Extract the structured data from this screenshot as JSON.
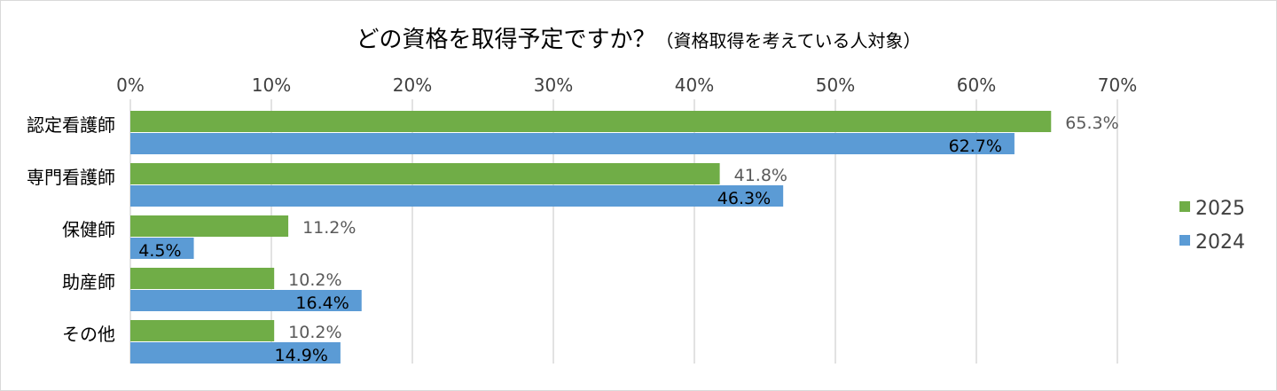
{
  "chart_data": {
    "type": "bar",
    "orientation": "horizontal",
    "title": "どの資格を取得予定ですか？",
    "subtitle": "（資格取得を考えている人対象）",
    "categories": [
      "認定看護師",
      "専門看護師",
      "保健師",
      "助産師",
      "その他"
    ],
    "series": [
      {
        "name": "2025",
        "color": "#70ad47",
        "values": [
          65.3,
          41.8,
          11.2,
          10.2,
          10.2
        ],
        "labels": [
          "65.3%",
          "41.8%",
          "11.2%",
          "10.2%",
          "10.2%"
        ]
      },
      {
        "name": "2024",
        "color": "#5b9bd5",
        "values": [
          62.7,
          46.3,
          4.5,
          16.4,
          14.9
        ],
        "labels": [
          "62.7%",
          "46.3%",
          "4.5%",
          "16.4%",
          "14.9%"
        ]
      }
    ],
    "xlim": [
      0,
      70
    ],
    "x_ticks": [
      "0%",
      "10%",
      "20%",
      "30%",
      "40%",
      "50%",
      "60%",
      "70%"
    ],
    "grid": true,
    "legend_position": "right"
  }
}
